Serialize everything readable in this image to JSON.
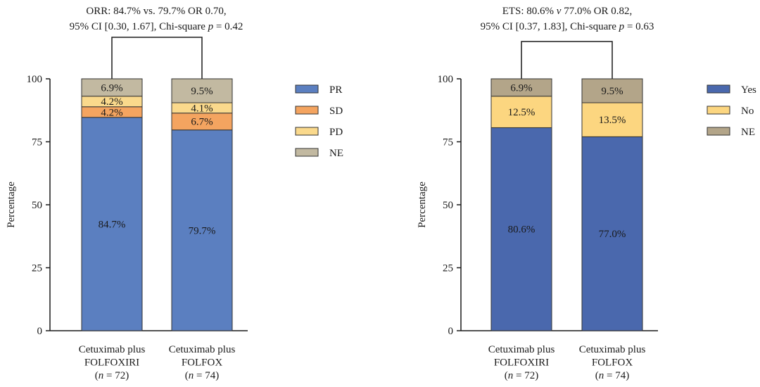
{
  "chart_data": [
    {
      "type": "bar",
      "stacked": true,
      "annotation_lines": [
        "ORR: 84.7% vs. 79.7% OR 0.70,",
        "95% CI [0.30, 1.67], Chi-square p = 0.42"
      ],
      "ylabel": "Percentage",
      "ylim": [
        0,
        100
      ],
      "yticks": [
        "0",
        "25",
        "50",
        "75",
        "100"
      ],
      "categories": [
        [
          "Cetuximab plus",
          "FOLFOXIRI",
          "(n = 72)"
        ],
        [
          "Cetuximab plus",
          "FOLFOX",
          "(n = 74)"
        ]
      ],
      "series": [
        {
          "name": "PR",
          "color": "#5b7fc0",
          "values": [
            84.7,
            79.7
          ],
          "labels": [
            "84.7%",
            "79.7%"
          ]
        },
        {
          "name": "SD",
          "color": "#f4a460",
          "values": [
            4.2,
            6.7
          ],
          "labels": [
            "4.2%",
            "6.7%"
          ]
        },
        {
          "name": "PD",
          "color": "#fad98c",
          "values": [
            4.2,
            4.1
          ],
          "labels": [
            "4.2%",
            "4.1%"
          ]
        },
        {
          "name": "NE",
          "color": "#c2b9a1",
          "values": [
            6.9,
            9.5
          ],
          "labels": [
            "6.9%",
            "9.5%"
          ]
        }
      ],
      "legend_position": "right"
    },
    {
      "type": "bar",
      "stacked": true,
      "annotation_lines": [
        "ETS: 80.6% v 77.0% OR 0.82,",
        "95% CI [0.37, 1.83],  Chi-square p = 0.63"
      ],
      "ylabel": "Percentage",
      "ylim": [
        0,
        100
      ],
      "yticks": [
        "0",
        "25",
        "50",
        "75",
        "100"
      ],
      "categories": [
        [
          "Cetuximab plus",
          "FOLFOXIRI",
          "(n = 72)"
        ],
        [
          "Cetuximab plus",
          "FOLFOX",
          "(n = 74)"
        ]
      ],
      "series": [
        {
          "name": "Yes",
          "color": "#4a68ad",
          "values": [
            80.6,
            77.0
          ],
          "labels": [
            "80.6%",
            "77.0%"
          ]
        },
        {
          "name": "No",
          "color": "#fcd680",
          "values": [
            12.5,
            13.5
          ],
          "labels": [
            "12.5%",
            "13.5%"
          ]
        },
        {
          "name": "NE",
          "color": "#b3a589",
          "values": [
            6.9,
            9.5
          ],
          "labels": [
            "6.9%",
            "9.5%"
          ]
        }
      ],
      "legend_position": "right"
    }
  ]
}
